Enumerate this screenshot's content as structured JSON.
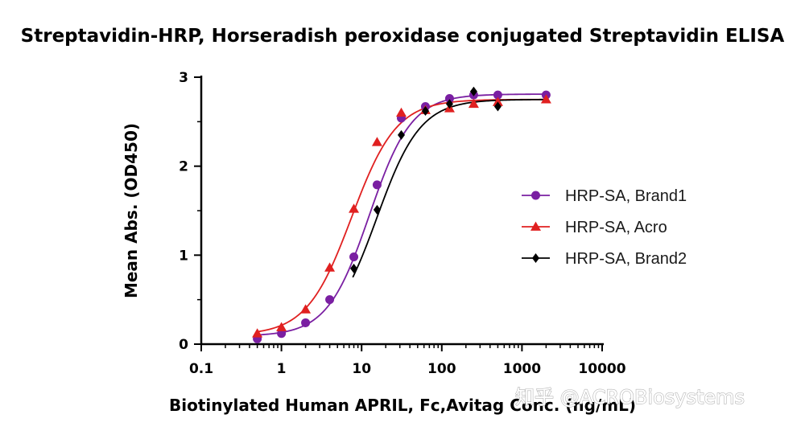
{
  "chart_data": {
    "type": "scatter",
    "title": "Streptavidin-HRP, Horseradish peroxidase conjugated Streptavidin ELISA",
    "xlabel": "Biotinylated Human APRIL, Fc,Avitag Conc. (ng/mL)",
    "ylabel": "Mean Abs. (OD450)",
    "xscale": "log",
    "xlim": [
      0.1,
      10000
    ],
    "ylim": [
      0,
      3
    ],
    "x_ticks": [
      "0.1",
      "1",
      "10",
      "100",
      "1000",
      "10000"
    ],
    "y_ticks": [
      "0",
      "1",
      "2",
      "3"
    ],
    "legend_position": "right",
    "series": [
      {
        "name": "HRP-SA, Brand1",
        "color": "#7a1fa2",
        "marker": "circle",
        "x": [
          0.5,
          1,
          2,
          4,
          8,
          15.6,
          31.25,
          62.5,
          125,
          250,
          500,
          2000
        ],
        "y": [
          0.06,
          0.12,
          0.24,
          0.5,
          0.98,
          1.79,
          2.54,
          2.67,
          2.76,
          2.8,
          2.8,
          2.8
        ],
        "fit": {
          "bottom": 0.09,
          "top": 2.81,
          "ec50": 12.5,
          "hill": 1.65
        }
      },
      {
        "name": "HRP-SA, Acro",
        "color": "#e02020",
        "marker": "triangle",
        "x": [
          0.5,
          1,
          2,
          4,
          8,
          15.6,
          31.25,
          62.5,
          125,
          250,
          500,
          2000
        ],
        "y": [
          0.12,
          0.19,
          0.39,
          0.86,
          1.52,
          2.27,
          2.6,
          2.63,
          2.65,
          2.7,
          2.72,
          2.75
        ],
        "fit": {
          "bottom": 0.1,
          "top": 2.75,
          "ec50": 7.5,
          "hill": 1.55
        }
      },
      {
        "name": "HRP-SA, Brand2",
        "color": "#000000",
        "marker": "diamond",
        "x": [
          8,
          15.6,
          31.25,
          62.5,
          125,
          250,
          500
        ],
        "y": [
          0.85,
          1.51,
          2.35,
          2.62,
          2.7,
          2.84,
          2.67
        ],
        "fit": {
          "bottom": 0.09,
          "top": 2.75,
          "ec50": 15.5,
          "hill": 1.6
        }
      }
    ]
  },
  "watermark": {
    "text": "知乎 @ACROBiosystems"
  }
}
